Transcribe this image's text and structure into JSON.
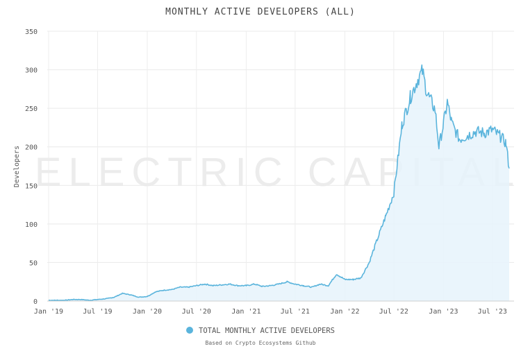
{
  "chart_data": {
    "type": "area",
    "title": "MONTHLY ACTIVE DEVELOPERS (ALL)",
    "ylabel": "Developers",
    "xlabel": "",
    "ylim": [
      0,
      350
    ],
    "yticks": [
      "0",
      "50",
      "100",
      "150",
      "200",
      "250",
      "300",
      "350"
    ],
    "xticks": [
      "Jan '19",
      "Jul '19",
      "Jan '20",
      "Jul '20",
      "Jan '21",
      "Jul '21",
      "Jan '22",
      "Jul '22",
      "Jan '23",
      "Jul '23"
    ],
    "watermark": "ELECTRIC CAPITAL",
    "legend": "TOTAL MONTHLY ACTIVE DEVELOPERS",
    "source_note": "Based on Crypto Ecosystems Github",
    "color": "#5ab4dc",
    "fill_color": "#e6f3fb",
    "series": [
      {
        "name": "TOTAL MONTHLY ACTIVE DEVELOPERS",
        "x": [
          "2019-01-01",
          "2019-02-01",
          "2019-03-01",
          "2019-04-01",
          "2019-05-01",
          "2019-06-01",
          "2019-07-01",
          "2019-08-01",
          "2019-09-01",
          "2019-10-01",
          "2019-11-01",
          "2019-12-01",
          "2020-01-01",
          "2020-02-01",
          "2020-03-01",
          "2020-04-01",
          "2020-05-01",
          "2020-06-01",
          "2020-07-01",
          "2020-08-01",
          "2020-09-01",
          "2020-10-01",
          "2020-11-01",
          "2020-12-01",
          "2021-01-01",
          "2021-02-01",
          "2021-03-01",
          "2021-04-01",
          "2021-05-01",
          "2021-06-01",
          "2021-07-01",
          "2021-08-01",
          "2021-09-01",
          "2021-10-01",
          "2021-11-01",
          "2021-12-01",
          "2022-01-01",
          "2022-02-01",
          "2022-03-01",
          "2022-04-01",
          "2022-05-01",
          "2022-06-01",
          "2022-07-01",
          "2022-08-01",
          "2022-09-01",
          "2022-10-01",
          "2022-10-15",
          "2022-11-01",
          "2022-12-01",
          "2022-12-15",
          "2023-01-01",
          "2023-01-15",
          "2023-02-01",
          "2023-03-01",
          "2023-04-01",
          "2023-05-01",
          "2023-06-01",
          "2023-07-01",
          "2023-08-01",
          "2023-08-20",
          "2023-09-01"
        ],
        "values": [
          1,
          1,
          1,
          2,
          2,
          1,
          2,
          3,
          5,
          10,
          8,
          5,
          6,
          12,
          14,
          15,
          18,
          18,
          20,
          22,
          20,
          21,
          22,
          20,
          20,
          22,
          19,
          20,
          22,
          25,
          22,
          20,
          18,
          22,
          20,
          35,
          28,
          28,
          30,
          50,
          80,
          110,
          140,
          230,
          265,
          290,
          298,
          270,
          248,
          200,
          230,
          258,
          230,
          210,
          215,
          220,
          218,
          222,
          213,
          205,
          172
        ]
      }
    ]
  }
}
